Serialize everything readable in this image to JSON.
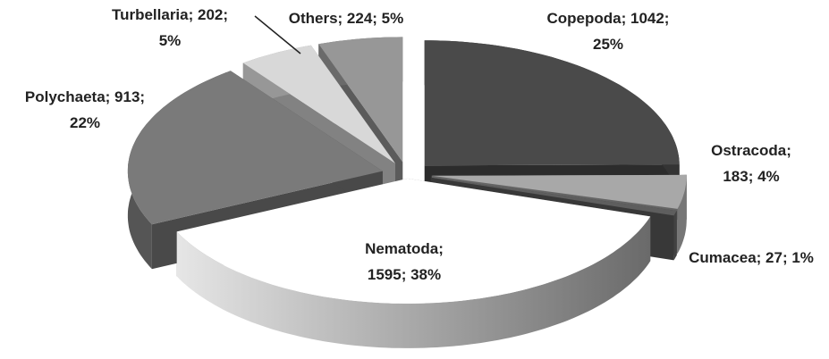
{
  "chart_data": {
    "type": "pie",
    "pie_3d": true,
    "exploded": true,
    "values": [
      1042,
      183,
      27,
      1595,
      913,
      202,
      224
    ],
    "value_labels": [
      [
        "Copepoda; 1042;",
        "25%"
      ],
      [
        "Ostracoda;",
        "183; 4%"
      ],
      [
        "Cumacea; 27; 1%"
      ],
      [
        "Nematoda;",
        "1595; 38%"
      ],
      [
        "Polychaeta; 913;",
        "22%"
      ],
      [
        "Turbellaria; 202;",
        "5%"
      ],
      [
        "Others; 224; 5%"
      ]
    ],
    "colors": [
      "#4a4a4a",
      "#a8a8a8",
      "#5e5e5e",
      "#ffffff",
      "#7a7a7a",
      "#d8d8d8",
      "#979797"
    ]
  }
}
